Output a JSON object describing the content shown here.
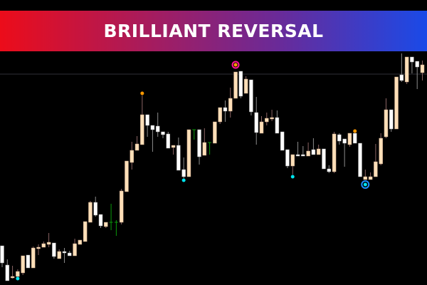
{
  "banner": {
    "title": "BRILLIANT REVERSAL"
  },
  "colors": {
    "background": "#000000",
    "bull_body": "#ffdfb8",
    "bear_body": "#ffffff",
    "bull_wick": "#8a6464",
    "bear_wick": "#8c8c8c",
    "doji": "#0a9a0a",
    "top_signal": "#ff9900",
    "bottom_signal": "#00e5ee",
    "top_ring": "#ff1493",
    "bottom_ring": "#1e90ff",
    "level_line": "#303038"
  },
  "chart_data": {
    "type": "candlestick",
    "axes_shown": false,
    "grid": false,
    "horizontal_level": 296,
    "ohlc": [
      [
        55,
        55,
        25,
        31
      ],
      [
        28,
        36,
        6,
        6
      ],
      [
        10,
        27,
        9,
        12
      ],
      [
        12,
        22,
        12,
        19
      ],
      [
        17,
        41,
        14,
        41
      ],
      [
        42,
        42,
        24,
        24
      ],
      [
        24,
        54,
        24,
        52
      ],
      [
        51,
        57,
        42,
        53
      ],
      [
        53,
        61,
        53,
        58
      ],
      [
        57,
        73,
        53,
        60
      ],
      [
        59,
        59,
        37,
        40
      ],
      [
        37,
        50,
        37,
        47
      ],
      [
        47,
        52,
        31,
        45
      ],
      [
        45,
        48,
        41,
        41
      ],
      [
        41,
        65,
        41,
        58
      ],
      [
        57,
        63,
        57,
        63
      ],
      [
        61,
        89,
        61,
        89
      ],
      [
        88,
        118,
        88,
        116
      ],
      [
        116,
        124,
        96,
        98
      ],
      [
        99,
        99,
        80,
        83
      ],
      [
        82,
        88,
        80,
        88
      ],
      [
        88,
        114,
        77,
        88
      ],
      [
        88,
        91,
        69,
        88
      ],
      [
        88,
        135,
        85,
        132
      ],
      [
        131,
        174,
        131,
        174
      ],
      [
        172,
        201,
        162,
        189
      ],
      [
        189,
        209,
        189,
        198
      ],
      [
        197,
        266,
        197,
        239
      ],
      [
        239,
        239,
        208,
        224
      ],
      [
        224,
        224,
        187,
        218
      ],
      [
        223,
        242,
        208,
        215
      ],
      [
        215,
        215,
        206,
        211
      ],
      [
        212,
        215,
        192,
        192
      ],
      [
        193,
        196,
        183,
        196
      ],
      [
        196,
        207,
        161,
        161
      ],
      [
        162,
        179,
        150,
        152
      ],
      [
        152,
        218,
        152,
        218
      ],
      [
        218,
        218,
        204,
        218
      ],
      [
        218,
        218,
        169,
        180
      ],
      [
        182,
        220,
        182,
        200
      ],
      [
        200,
        200,
        183,
        200
      ],
      [
        199,
        229,
        199,
        229
      ],
      [
        229,
        249,
        226,
        249
      ],
      [
        249,
        259,
        229,
        244
      ],
      [
        244,
        277,
        235,
        262
      ],
      [
        262,
        299,
        262,
        299
      ],
      [
        300,
        300,
        262,
        265
      ],
      [
        269,
        293,
        269,
        289
      ],
      [
        288,
        288,
        238,
        243
      ],
      [
        242,
        264,
        197,
        214
      ],
      [
        213,
        237,
        213,
        229
      ],
      [
        229,
        242,
        224,
        234
      ],
      [
        233,
        246,
        230,
        235
      ],
      [
        235,
        245,
        213,
        213
      ],
      [
        215,
        215,
        189,
        189
      ],
      [
        190,
        190,
        164,
        167
      ],
      [
        167,
        183,
        155,
        183
      ],
      [
        183,
        201,
        181,
        181
      ],
      [
        183,
        195,
        181,
        181
      ],
      [
        181,
        200,
        181,
        188
      ],
      [
        190,
        206,
        183,
        183
      ],
      [
        183,
        197,
        183,
        191
      ],
      [
        191,
        191,
        163,
        163
      ],
      [
        163,
        168,
        157,
        159
      ],
      [
        159,
        215,
        157,
        212
      ],
      [
        211,
        213,
        197,
        202
      ],
      [
        205,
        205,
        166,
        199
      ],
      [
        197,
        213,
        194,
        213
      ],
      [
        213,
        213,
        199,
        199
      ],
      [
        199,
        199,
        152,
        152
      ],
      [
        148,
        162,
        148,
        152
      ],
      [
        148,
        158,
        148,
        152
      ],
      [
        152,
        198,
        152,
        173
      ],
      [
        170,
        213,
        168,
        206
      ],
      [
        208,
        262,
        206,
        246
      ],
      [
        246,
        246,
        215,
        219
      ],
      [
        219,
        292,
        219,
        292
      ],
      [
        295,
        325,
        285,
        287
      ],
      [
        285,
        320,
        282,
        320
      ],
      [
        320,
        320,
        297,
        313
      ],
      [
        314,
        314,
        275,
        306
      ],
      [
        298,
        315,
        287,
        309
      ]
    ],
    "doji_indices": [
      21,
      22,
      37,
      40
    ],
    "top_signals": [
      27,
      45,
      68
    ],
    "bottom_signals": [
      3,
      35,
      56
    ],
    "top_ring_signals": [
      45
    ],
    "bottom_ring_signals": [
      70
    ]
  }
}
